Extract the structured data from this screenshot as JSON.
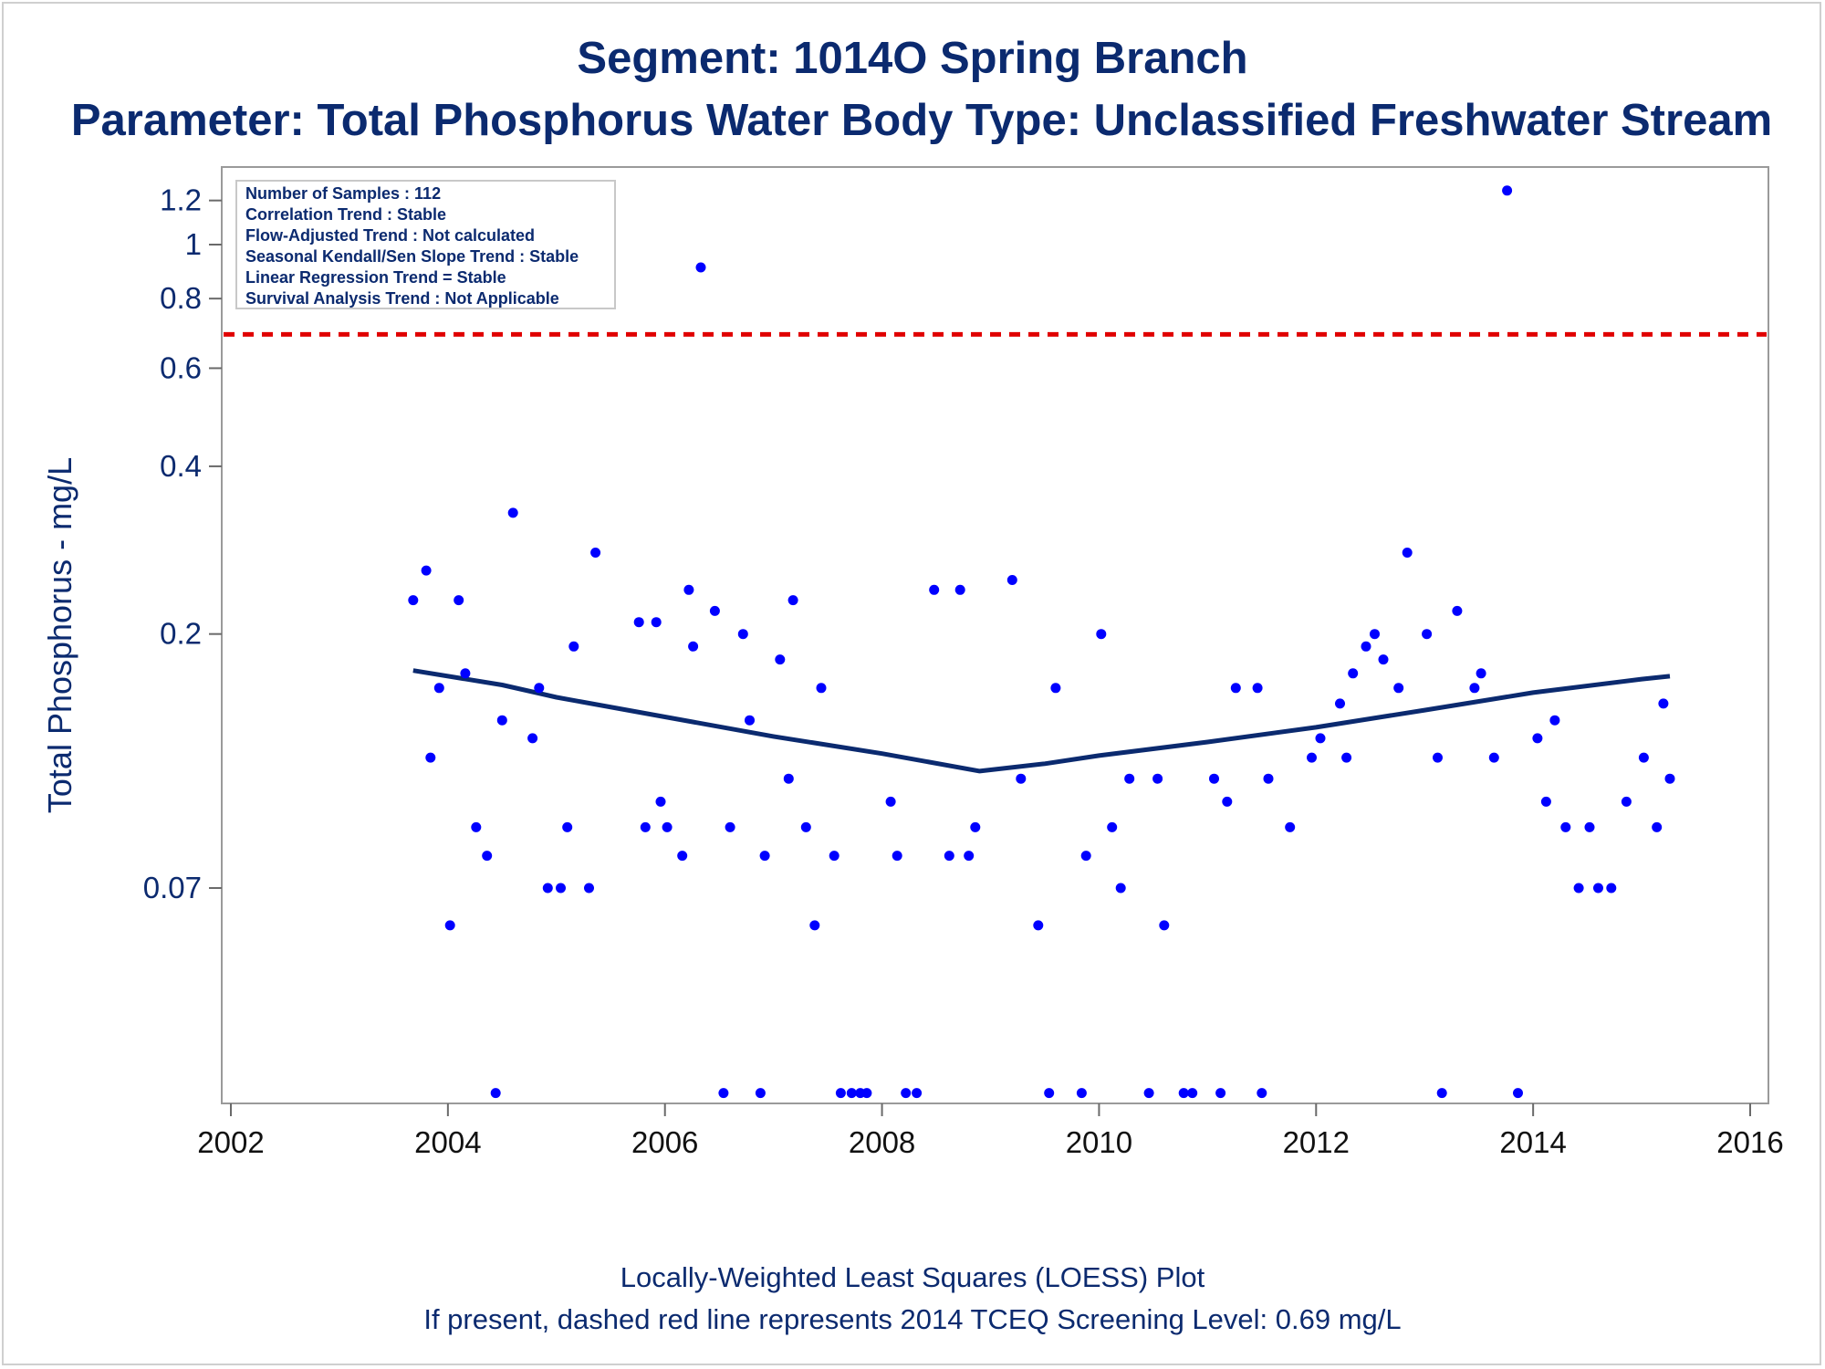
{
  "chart_data": {
    "type": "scatter",
    "title": "Segment: 1014O  Spring Branch",
    "subtitle": "Parameter: Total Phosphorus   Water Body Type: Unclassified Freshwater Stream",
    "xlabel": "",
    "ylabel": "Total Phosphorus - mg/L",
    "footnotes": [
      "Locally-Weighted Least Squares (LOESS) Plot",
      "If present, dashed red line represents 2014 TCEQ Screening Level: 0.69 mg/L"
    ],
    "annotations": [
      "Number of Samples : 112",
      "Correlation Trend : Stable",
      "Flow-Adjusted Trend : Not calculated",
      "Seasonal Kendall/Sen Slope Trend : Stable",
      "Linear Regression Trend = Stable",
      "Survival Analysis Trend : Not Applicable"
    ],
    "x_ticks": [
      "2002",
      "2004",
      "2006",
      "2008",
      "2010",
      "2012",
      "2014",
      "2016"
    ],
    "xlim": [
      2002,
      2016
    ],
    "y_ticks": [
      "0.07",
      "0.2",
      "0.4",
      "0.6",
      "0.8",
      "1",
      "1.2"
    ],
    "y_scale": "log",
    "ylim": [
      0.03,
      1.35
    ],
    "screening_level": {
      "value": 0.69,
      "color": "#e00000",
      "style": "dashed"
    },
    "marker_color": "#0000ff",
    "line_color": "#0b2a6f",
    "series": [
      {
        "points": [
          [
            2003.68,
            0.23
          ],
          [
            2003.8,
            0.26
          ],
          [
            2003.84,
            0.12
          ],
          [
            2003.92,
            0.16
          ],
          [
            2004.02,
            0.06
          ],
          [
            2004.1,
            0.23
          ],
          [
            2004.16,
            0.17
          ],
          [
            2004.26,
            0.09
          ],
          [
            2004.36,
            0.08
          ],
          [
            2004.44,
            0.03
          ],
          [
            2004.5,
            0.14
          ],
          [
            2004.6,
            0.33
          ],
          [
            2004.78,
            0.13
          ],
          [
            2004.84,
            0.16
          ],
          [
            2004.92,
            0.07
          ],
          [
            2005.04,
            0.07
          ],
          [
            2005.1,
            0.09
          ],
          [
            2005.16,
            0.19
          ],
          [
            2005.3,
            0.07
          ],
          [
            2005.36,
            0.28
          ],
          [
            2005.76,
            0.21
          ],
          [
            2005.82,
            0.09
          ],
          [
            2005.92,
            0.21
          ],
          [
            2005.96,
            0.1
          ],
          [
            2006.02,
            0.09
          ],
          [
            2006.16,
            0.08
          ],
          [
            2006.22,
            0.24
          ],
          [
            2006.26,
            0.19
          ],
          [
            2006.33,
            0.91
          ],
          [
            2006.46,
            0.22
          ],
          [
            2006.54,
            0.03
          ],
          [
            2006.6,
            0.09
          ],
          [
            2006.72,
            0.2
          ],
          [
            2006.78,
            0.14
          ],
          [
            2006.88,
            0.03
          ],
          [
            2006.92,
            0.08
          ],
          [
            2007.06,
            0.18
          ],
          [
            2007.14,
            0.11
          ],
          [
            2007.18,
            0.23
          ],
          [
            2007.3,
            0.09
          ],
          [
            2007.38,
            0.06
          ],
          [
            2007.44,
            0.16
          ],
          [
            2007.56,
            0.08
          ],
          [
            2007.62,
            0.03
          ],
          [
            2007.72,
            0.03
          ],
          [
            2007.8,
            0.03
          ],
          [
            2007.86,
            0.03
          ],
          [
            2008.08,
            0.1
          ],
          [
            2008.14,
            0.08
          ],
          [
            2008.22,
            0.03
          ],
          [
            2008.32,
            0.03
          ],
          [
            2008.48,
            0.24
          ],
          [
            2008.62,
            0.08
          ],
          [
            2008.72,
            0.24
          ],
          [
            2008.8,
            0.08
          ],
          [
            2008.86,
            0.09
          ],
          [
            2009.2,
            0.25
          ],
          [
            2009.28,
            0.11
          ],
          [
            2009.44,
            0.06
          ],
          [
            2009.54,
            0.03
          ],
          [
            2009.6,
            0.16
          ],
          [
            2009.84,
            0.03
          ],
          [
            2009.88,
            0.08
          ],
          [
            2010.02,
            0.2
          ],
          [
            2010.12,
            0.09
          ],
          [
            2010.2,
            0.07
          ],
          [
            2010.28,
            0.11
          ],
          [
            2010.46,
            0.03
          ],
          [
            2010.54,
            0.11
          ],
          [
            2010.6,
            0.06
          ],
          [
            2010.78,
            0.03
          ],
          [
            2010.86,
            0.03
          ],
          [
            2011.06,
            0.11
          ],
          [
            2011.12,
            0.03
          ],
          [
            2011.18,
            0.1
          ],
          [
            2011.26,
            0.16
          ],
          [
            2011.46,
            0.16
          ],
          [
            2011.5,
            0.03
          ],
          [
            2011.56,
            0.11
          ],
          [
            2011.76,
            0.09
          ],
          [
            2011.96,
            0.12
          ],
          [
            2012.04,
            0.13
          ],
          [
            2012.22,
            0.15
          ],
          [
            2012.28,
            0.12
          ],
          [
            2012.34,
            0.17
          ],
          [
            2012.46,
            0.19
          ],
          [
            2012.54,
            0.2
          ],
          [
            2012.62,
            0.18
          ],
          [
            2012.76,
            0.16
          ],
          [
            2012.84,
            0.28
          ],
          [
            2013.02,
            0.2
          ],
          [
            2013.12,
            0.12
          ],
          [
            2013.16,
            0.03
          ],
          [
            2013.3,
            0.22
          ],
          [
            2013.46,
            0.16
          ],
          [
            2013.52,
            0.17
          ],
          [
            2013.64,
            0.12
          ],
          [
            2013.76,
            1.25
          ],
          [
            2013.86,
            0.03
          ],
          [
            2014.04,
            0.13
          ],
          [
            2014.12,
            0.1
          ],
          [
            2014.2,
            0.14
          ],
          [
            2014.3,
            0.09
          ],
          [
            2014.42,
            0.07
          ],
          [
            2014.52,
            0.09
          ],
          [
            2014.6,
            0.07
          ],
          [
            2014.72,
            0.07
          ],
          [
            2014.86,
            0.1
          ],
          [
            2015.02,
            0.12
          ],
          [
            2015.14,
            0.09
          ],
          [
            2015.2,
            0.15
          ],
          [
            2015.26,
            0.11
          ]
        ]
      },
      {
        "type": "line",
        "points": [
          [
            2003.68,
            0.172
          ],
          [
            2004.5,
            0.162
          ],
          [
            2005.0,
            0.154
          ],
          [
            2006.0,
            0.142
          ],
          [
            2007.0,
            0.131
          ],
          [
            2008.0,
            0.122
          ],
          [
            2008.9,
            0.1135
          ],
          [
            2009.5,
            0.117
          ],
          [
            2010.0,
            0.121
          ],
          [
            2011.0,
            0.128
          ],
          [
            2012.0,
            0.136
          ],
          [
            2013.0,
            0.146
          ],
          [
            2014.0,
            0.157
          ],
          [
            2015.0,
            0.166
          ],
          [
            2015.26,
            0.168
          ]
        ]
      }
    ]
  }
}
